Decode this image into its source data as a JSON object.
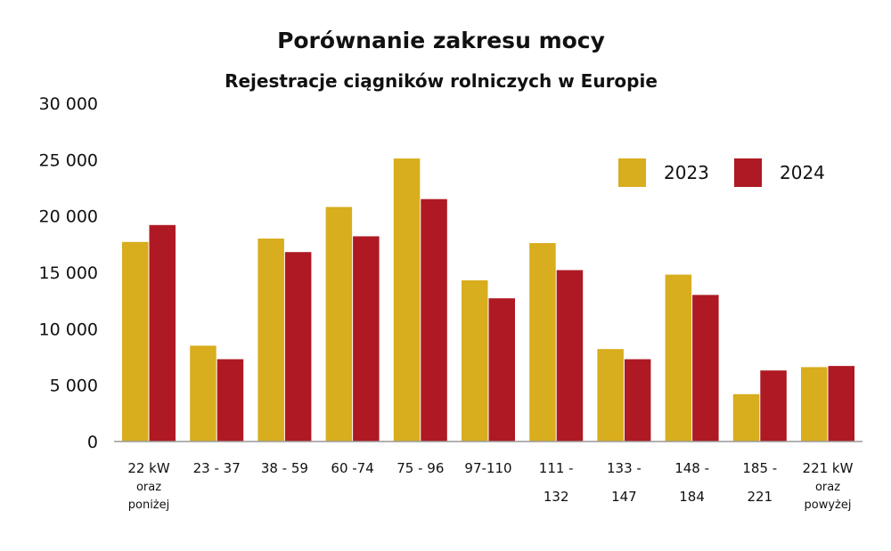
{
  "chart_data": {
    "type": "bar",
    "title": "Porównanie zakresu mocy",
    "subtitle": "Rejestracje ciągników rolniczych w Europie",
    "xlabel": "",
    "ylabel": "",
    "ylim": [
      0,
      30000
    ],
    "yticks": [
      0,
      5000,
      10000,
      15000,
      20000,
      25000,
      30000
    ],
    "ytick_labels": [
      "0",
      "5 000",
      "10 000",
      "15 000",
      "20 000",
      "25 000",
      "30 000"
    ],
    "grid": false,
    "legend_position": "top-right",
    "categories": [
      [
        "22 kW",
        "oraz",
        "poniżej"
      ],
      [
        "23 - 37"
      ],
      [
        "38 - 59"
      ],
      [
        "60 -74"
      ],
      [
        "75 - 96"
      ],
      [
        "97-110"
      ],
      [
        "111 -",
        "132"
      ],
      [
        "133 -",
        "147"
      ],
      [
        "148 -",
        "184"
      ],
      [
        "185 -",
        "221"
      ],
      [
        "221 kW",
        "oraz",
        "powyżej"
      ]
    ],
    "series": [
      {
        "name": "2023",
        "color": "#D8AD1E",
        "values": [
          17700,
          8500,
          18000,
          20800,
          25100,
          14300,
          17600,
          8200,
          14800,
          4200,
          6600
        ]
      },
      {
        "name": "2024",
        "color": "#AF1923",
        "values": [
          19200,
          7300,
          16800,
          18200,
          21500,
          12700,
          15200,
          7300,
          13000,
          6300,
          6700
        ]
      }
    ]
  }
}
